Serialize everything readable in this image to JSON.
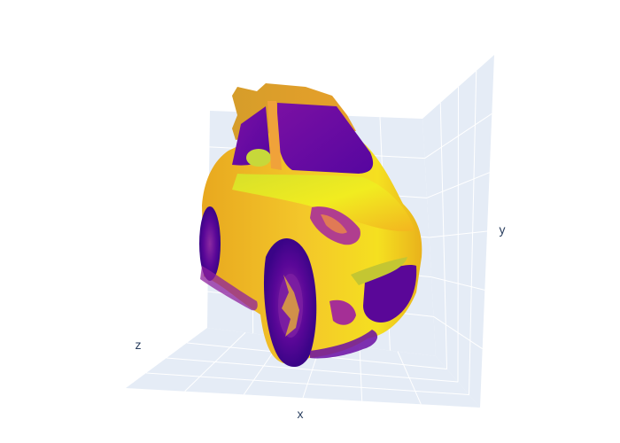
{
  "chart_data": {
    "type": "surface",
    "title": "",
    "axes": {
      "x": {
        "label": "x"
      },
      "y": {
        "label": "y"
      },
      "z": {
        "label": "z"
      }
    },
    "colorscale": "plasma",
    "colors": {
      "scene_bg": "#e5ecf6",
      "grid": "#ffffff",
      "text": "#2a3f5f",
      "palette": [
        "#0d0887",
        "#46039f",
        "#7201a8",
        "#9c179e",
        "#bd3786",
        "#d8576b",
        "#ed7953",
        "#fb9f3a",
        "#fdca26",
        "#f0f921"
      ]
    },
    "show_legend": false,
    "grid": true,
    "subject": "car"
  }
}
